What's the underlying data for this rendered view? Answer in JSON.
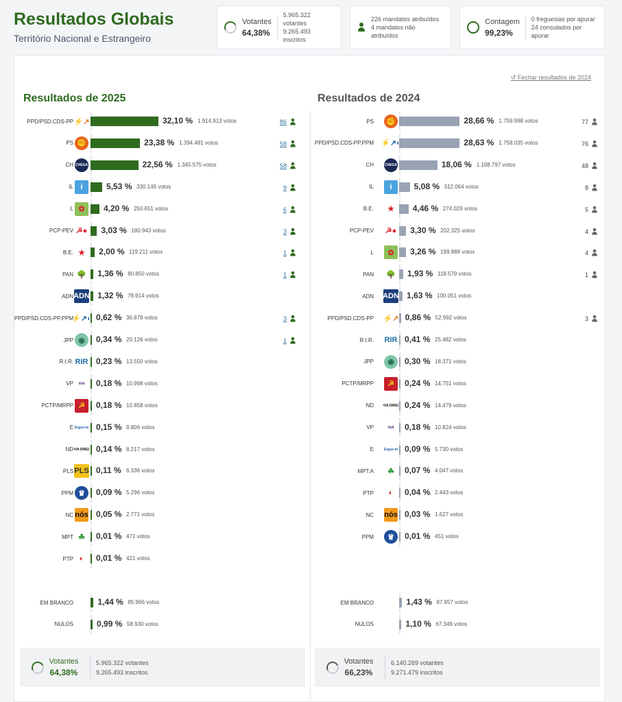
{
  "header": {
    "title": "Resultados Globais",
    "subtitle": "Território Nacional e Estrangeiro"
  },
  "stats": {
    "votantes": {
      "label": "Votantes",
      "value": "64,38%",
      "line1": "5.965.322 votantes",
      "line2": "9.265.493 inscritos"
    },
    "mandatos": {
      "line1": "226 mandatos atribuídos",
      "line2": "4 mandatos não atribuídos"
    },
    "contagem": {
      "label": "Contagem",
      "value": "99,23%",
      "line1": "0 freguesias por apurar",
      "line2": "24 consulados por apurar"
    }
  },
  "close_link": "Fechar resultados de 2024",
  "results_2025": {
    "title": "Resultados de 2025",
    "rows": [
      {
        "party": "PPD/PSD.CDS-PP",
        "logo": "ad-logo",
        "pct": "32,10 %",
        "votes": "1.914.913 votos",
        "seats": "86",
        "share": 32.1
      },
      {
        "party": "PS",
        "logo": "ps-logo",
        "pct": "23,38 %",
        "votes": "1.394.491 votos",
        "seats": "58",
        "share": 23.38
      },
      {
        "party": "CH",
        "logo": "chega-logo",
        "pct": "22,56 %",
        "votes": "1.345.575 votos",
        "seats": "58",
        "share": 22.56
      },
      {
        "party": "IL",
        "logo": "il-logo",
        "pct": "5,53 %",
        "votes": "330.149 votos",
        "seats": "9",
        "share": 5.53
      },
      {
        "party": "L",
        "logo": "livre-logo",
        "pct": "4,20 %",
        "votes": "250.651 votos",
        "seats": "6",
        "share": 4.2
      },
      {
        "party": "PCP-PEV",
        "logo": "cdu-logo",
        "pct": "3,03 %",
        "votes": "180.943 votos",
        "seats": "3",
        "share": 3.03
      },
      {
        "party": "B.E.",
        "logo": "be-logo",
        "pct": "2,00 %",
        "votes": "119.211 votos",
        "seats": "1",
        "share": 2.0
      },
      {
        "party": "PAN",
        "logo": "pan-logo",
        "pct": "1,36 %",
        "votes": "80.850 votos",
        "seats": "1",
        "share": 1.36
      },
      {
        "party": "ADN",
        "logo": "adn-logo",
        "pct": "1,32 %",
        "votes": "78.914 votos",
        "seats": "",
        "share": 1.32
      },
      {
        "party": "PPD/PSD.CDS-PP.PPM",
        "logo": "ad-ppm-logo",
        "pct": "0,62 %",
        "votes": "36.879 votos",
        "seats": "3",
        "share": 0.62
      },
      {
        "party": "JPP",
        "logo": "jpp-logo",
        "pct": "0,34 %",
        "votes": "20.126 votos",
        "seats": "1",
        "share": 0.34
      },
      {
        "party": "R.I.R.",
        "logo": "rir-logo",
        "pct": "0,23 %",
        "votes": "13.550 votos",
        "seats": "",
        "share": 0.23
      },
      {
        "party": "VP",
        "logo": "volt-logo",
        "pct": "0,18 %",
        "votes": "10.998 votos",
        "seats": "",
        "share": 0.18
      },
      {
        "party": "PCTP/MRPP",
        "logo": "pctp-logo",
        "pct": "0,18 %",
        "votes": "10.858 votos",
        "seats": "",
        "share": 0.18
      },
      {
        "party": "E",
        "logo": "ergue-te-logo",
        "pct": "0,15 %",
        "votes": "8.806 votos",
        "seats": "",
        "share": 0.15
      },
      {
        "party": "ND",
        "logo": "nova-direita-logo",
        "pct": "0,14 %",
        "votes": "8.217 votos",
        "seats": "",
        "share": 0.14
      },
      {
        "party": "PLS",
        "logo": "pls-logo",
        "pct": "0,11 %",
        "votes": "6.336 votos",
        "seats": "",
        "share": 0.11
      },
      {
        "party": "PPM",
        "logo": "ppm-logo",
        "pct": "0,09 %",
        "votes": "5.296 votos",
        "seats": "",
        "share": 0.09
      },
      {
        "party": "NC",
        "logo": "nc-logo",
        "pct": "0,05 %",
        "votes": "2.771 votos",
        "seats": "",
        "share": 0.05
      },
      {
        "party": "MPT",
        "logo": "mpt-logo",
        "pct": "0,01 %",
        "votes": "471 votos",
        "seats": "",
        "share": 0.01
      },
      {
        "party": "PTP",
        "logo": "ptp-logo",
        "pct": "0,01 %",
        "votes": "421 votos",
        "seats": "",
        "share": 0.01
      }
    ],
    "blank": {
      "party": "EM BRANCO",
      "pct": "1,44 %",
      "votes": "85.966 votos",
      "share": 1.44
    },
    "null": {
      "party": "NULOS",
      "pct": "0,99 %",
      "votes": "58.930 votos",
      "share": 0.99
    },
    "footer": {
      "label": "Votantes",
      "value": "64,38%",
      "line1": "5.965.322 votantes",
      "line2": "9.265.493 inscritos"
    }
  },
  "results_2024": {
    "title": "Resultados de 2024",
    "rows": [
      {
        "party": "PS",
        "logo": "ps-logo",
        "pct": "28,66 %",
        "votes": "1.759.998 votos",
        "seats": "77",
        "share": 28.66
      },
      {
        "party": "PPD/PSD.CDS-PP.PPM",
        "logo": "ad-ppm-logo",
        "pct": "28,63 %",
        "votes": "1.758.035 votos",
        "seats": "76",
        "share": 28.63
      },
      {
        "party": "CH",
        "logo": "chega-logo",
        "pct": "18,06 %",
        "votes": "1.108.797 votos",
        "seats": "48",
        "share": 18.06
      },
      {
        "party": "IL",
        "logo": "il-logo",
        "pct": "5,08 %",
        "votes": "312.064 votos",
        "seats": "8",
        "share": 5.08
      },
      {
        "party": "B.E.",
        "logo": "be-logo",
        "pct": "4,46 %",
        "votes": "274.029 votos",
        "seats": "5",
        "share": 4.46
      },
      {
        "party": "PCP-PEV",
        "logo": "cdu-logo",
        "pct": "3,30 %",
        "votes": "202.325 votos",
        "seats": "4",
        "share": 3.3
      },
      {
        "party": "L",
        "logo": "livre-logo",
        "pct": "3,26 %",
        "votes": "199.888 votos",
        "seats": "4",
        "share": 3.26
      },
      {
        "party": "PAN",
        "logo": "pan-logo",
        "pct": "1,93 %",
        "votes": "118.579 votos",
        "seats": "1",
        "share": 1.93
      },
      {
        "party": "ADN",
        "logo": "adn-logo",
        "pct": "1,63 %",
        "votes": "100.051 votos",
        "seats": "",
        "share": 1.63
      },
      {
        "party": "PPD/PSD.CDS-PP",
        "logo": "ad-logo",
        "pct": "0,86 %",
        "votes": "52.992 votos",
        "seats": "3",
        "share": 0.86
      },
      {
        "party": "R.I.R.",
        "logo": "rir-logo",
        "pct": "0,41 %",
        "votes": "25.482 votos",
        "seats": "",
        "share": 0.41
      },
      {
        "party": "JPP",
        "logo": "jpp-logo",
        "pct": "0,30 %",
        "votes": "18.371 votos",
        "seats": "",
        "share": 0.3
      },
      {
        "party": "PCTP/MRPP",
        "logo": "pctp-logo",
        "pct": "0,24 %",
        "votes": "14.751 votos",
        "seats": "",
        "share": 0.24
      },
      {
        "party": "ND",
        "logo": "nova-direita-logo",
        "pct": "0,24 %",
        "votes": "14.479 votos",
        "seats": "",
        "share": 0.24
      },
      {
        "party": "VP",
        "logo": "volt-logo",
        "pct": "0,18 %",
        "votes": "10.824 votos",
        "seats": "",
        "share": 0.18
      },
      {
        "party": "E",
        "logo": "ergue-te-logo",
        "pct": "0,09 %",
        "votes": "5.730 votos",
        "seats": "",
        "share": 0.09
      },
      {
        "party": "MPT.A",
        "logo": "mpt-a-logo",
        "pct": "0,07 %",
        "votes": "4.047 votos",
        "seats": "",
        "share": 0.07
      },
      {
        "party": "PTP",
        "logo": "ptp-logo",
        "pct": "0,04 %",
        "votes": "2.443 votos",
        "seats": "",
        "share": 0.04
      },
      {
        "party": "NC",
        "logo": "nc-logo",
        "pct": "0,03 %",
        "votes": "1.627 votos",
        "seats": "",
        "share": 0.03
      },
      {
        "party": "PPM",
        "logo": "ppm-logo",
        "pct": "0,01 %",
        "votes": "451 votos",
        "seats": "",
        "share": 0.01
      }
    ],
    "blank": {
      "party": "EM BRANCO",
      "pct": "1,43 %",
      "votes": "87.957 votos",
      "share": 1.43
    },
    "null": {
      "party": "NULOS",
      "pct": "1,10 %",
      "votes": "67.349 votos",
      "share": 1.1
    },
    "footer": {
      "label": "Votantes",
      "value": "66,23%",
      "line1": "6.140.269 votantes",
      "line2": "9.271.479 inscritos"
    }
  },
  "colors": {
    "accent_green": "#2e6b1f",
    "bar_2024": "#9aa3b3",
    "link_blue": "#2f6f9f"
  },
  "logos": {
    "ad-logo": {
      "glyph": "⚡↗",
      "bg": "#ffffff",
      "fg": "#e07a1f"
    },
    "ad-ppm-logo": {
      "glyph": "⚡↗●",
      "bg": "#ffffff",
      "fg": "#1f5fa8"
    },
    "ps-logo": {
      "glyph": "✊",
      "bg": "#e8641b",
      "fg": "#c81d25"
    },
    "chega-logo": {
      "glyph": "CHEGA",
      "bg": "#1b2a55",
      "fg": "#ffffff"
    },
    "il-logo": {
      "glyph": "i",
      "bg": "#4aa3df",
      "fg": "#ffffff"
    },
    "livre-logo": {
      "glyph": "✿",
      "bg": "#8fbf5a",
      "fg": "#d8262c"
    },
    "cdu-logo": {
      "glyph": "☭●",
      "bg": "#ffffff",
      "fg": "#d8262c"
    },
    "be-logo": {
      "glyph": "★",
      "bg": "#ffffff",
      "fg": "#d8262c"
    },
    "pan-logo": {
      "glyph": "🌳",
      "bg": "#ffffff",
      "fg": "#1c8a9a"
    },
    "adn-logo": {
      "glyph": "ADN",
      "bg": "#1c3f7a",
      "fg": "#ffffff"
    },
    "jpp-logo": {
      "glyph": "◉",
      "bg": "#7fc6a8",
      "fg": "#2a6f52"
    },
    "rir-logo": {
      "glyph": "RIR",
      "bg": "#ffffff",
      "fg": "#1f6fa8"
    },
    "volt-logo": {
      "glyph": "Volt",
      "bg": "#ffffff",
      "fg": "#502379"
    },
    "pctp-logo": {
      "glyph": "☭",
      "bg": "#c8202d",
      "fg": "#f2c21b"
    },
    "ergue-te-logo": {
      "glyph": "Ergue-te",
      "bg": "#ffffff",
      "fg": "#1f5fa8"
    },
    "nova-direita-logo": {
      "glyph": "NOVA DIREITA",
      "bg": "#ffffff",
      "fg": "#111111"
    },
    "pls-logo": {
      "glyph": "PLS",
      "bg": "#f2c21b",
      "fg": "#333333"
    },
    "ppm-logo": {
      "glyph": "♛",
      "bg": "#1f4f9a",
      "fg": "#ffffff"
    },
    "nc-logo": {
      "glyph": "nós",
      "bg": "#f29a1b",
      "fg": "#111111"
    },
    "mpt-logo": {
      "glyph": "☘",
      "bg": "#ffffff",
      "fg": "#2f9a3a"
    },
    "mpt-a-logo": {
      "glyph": "☘",
      "bg": "#ffffff",
      "fg": "#2f9a3a"
    },
    "ptp-logo": {
      "glyph": "◐",
      "bg": "#ffffff",
      "fg": "#d8262c"
    }
  }
}
